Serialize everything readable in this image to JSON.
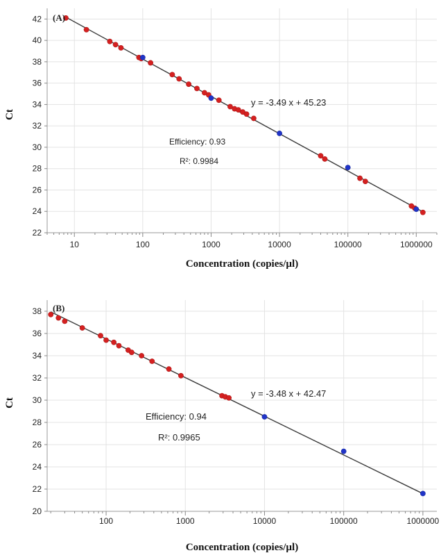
{
  "chart_data": [
    {
      "type": "scatter",
      "panel_label": "(A)",
      "xlabel": "Concentration (copies/µl)",
      "ylabel": "Ct",
      "x_scale": "log",
      "xlim": [
        4,
        2000000
      ],
      "ylim": [
        22,
        43
      ],
      "x_ticks": [
        10,
        100,
        1000,
        10000,
        100000,
        1000000
      ],
      "x_tick_labels": [
        "10",
        "100",
        "1000",
        "10000",
        "100000",
        "1000000"
      ],
      "y_ticks": [
        22,
        24,
        26,
        28,
        30,
        32,
        34,
        36,
        38,
        40,
        42
      ],
      "y_tick_labels": [
        "22",
        "24",
        "26",
        "28",
        "30",
        "32",
        "34",
        "36",
        "38",
        "40",
        "42"
      ],
      "grid": true,
      "equation": "y = -3.49 x + 45.23",
      "efficiency": "Efficiency: 0.93",
      "r_squared": "R²: 0.9984",
      "fit": {
        "slope": -3.49,
        "intercept": 45.23,
        "x_range": [
          7,
          1300000
        ]
      },
      "series": [
        {
          "color": "#d42020",
          "points": [
            [
              7.5,
              42.1
            ],
            [
              15,
              41.0
            ],
            [
              33,
              39.9
            ],
            [
              40,
              39.6
            ],
            [
              48,
              39.3
            ],
            [
              88,
              38.4
            ],
            [
              95,
              38.3
            ],
            [
              130,
              37.9
            ],
            [
              270,
              36.8
            ],
            [
              340,
              36.4
            ],
            [
              470,
              35.9
            ],
            [
              620,
              35.5
            ],
            [
              800,
              35.1
            ],
            [
              920,
              34.9
            ],
            [
              1300,
              34.4
            ],
            [
              1900,
              33.8
            ],
            [
              2200,
              33.6
            ],
            [
              2500,
              33.5
            ],
            [
              2900,
              33.3
            ],
            [
              3300,
              33.1
            ],
            [
              4200,
              32.7
            ],
            [
              40000,
              29.2
            ],
            [
              46000,
              28.9
            ],
            [
              150000,
              27.1
            ],
            [
              180000,
              26.8
            ],
            [
              850000,
              24.5
            ],
            [
              950000,
              24.3
            ],
            [
              1250000,
              23.9
            ]
          ]
        },
        {
          "color": "#2034c8",
          "points": [
            [
              100,
              38.4
            ],
            [
              1000,
              34.6
            ],
            [
              10000,
              31.3
            ],
            [
              100000,
              28.1
            ],
            [
              1000000,
              24.2
            ]
          ]
        }
      ]
    },
    {
      "type": "scatter",
      "panel_label": "(B)",
      "xlabel": "Concentration (copies/µl)",
      "ylabel": "Ct",
      "x_scale": "log",
      "xlim": [
        18,
        1500000
      ],
      "ylim": [
        20,
        39
      ],
      "x_ticks": [
        100,
        1000,
        10000,
        100000,
        1000000
      ],
      "x_tick_labels": [
        "100",
        "1000",
        "10000",
        "100000",
        "1000000"
      ],
      "y_ticks": [
        20,
        22,
        24,
        26,
        28,
        30,
        32,
        34,
        36,
        38
      ],
      "y_tick_labels": [
        "20",
        "22",
        "24",
        "26",
        "28",
        "30",
        "32",
        "34",
        "36",
        "38"
      ],
      "grid": true,
      "equation": "y = -3.48 x + 42.47",
      "efficiency": "Efficiency: 0.94",
      "r_squared": "R²: 0.9965",
      "fit": {
        "slope": -3.48,
        "intercept": 42.47,
        "x_range": [
          20,
          1000000
        ]
      },
      "series": [
        {
          "color": "#d42020",
          "points": [
            [
              20,
              37.7
            ],
            [
              25,
              37.4
            ],
            [
              30,
              37.1
            ],
            [
              50,
              36.5
            ],
            [
              85,
              35.8
            ],
            [
              100,
              35.4
            ],
            [
              125,
              35.2
            ],
            [
              145,
              34.9
            ],
            [
              190,
              34.5
            ],
            [
              210,
              34.3
            ],
            [
              280,
              34.0
            ],
            [
              380,
              33.5
            ],
            [
              620,
              32.8
            ],
            [
              880,
              32.2
            ],
            [
              2900,
              30.4
            ],
            [
              3200,
              30.3
            ],
            [
              3550,
              30.2
            ]
          ]
        },
        {
          "color": "#2034c8",
          "points": [
            [
              10000,
              28.5
            ],
            [
              100000,
              25.4
            ],
            [
              1000000,
              21.6
            ]
          ]
        }
      ]
    }
  ]
}
